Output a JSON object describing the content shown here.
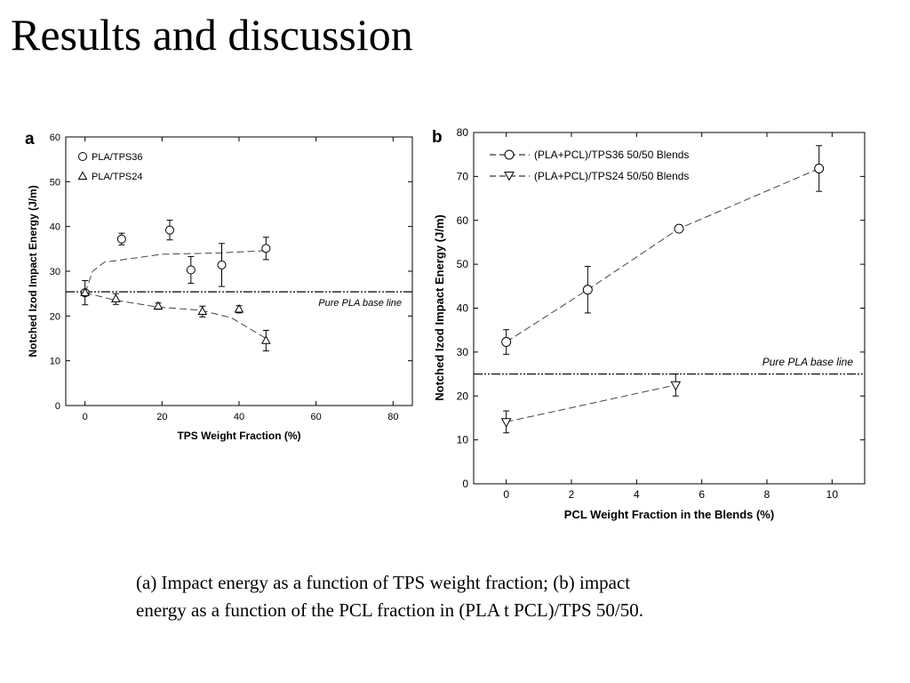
{
  "slide": {
    "title": "Results and discussion",
    "caption_line1": "(a) Impact energy as a function of TPS weight fraction; (b) impact",
    "caption_line2": "energy as a function of the PCL fraction in (PLA t PCL)/TPS 50/50."
  },
  "chart_data": [
    {
      "panel_label": "a",
      "type": "scatter",
      "xlabel": "TPS Weight Fraction (%)",
      "ylabel": "Notched Izod Impact Energy (J/m)",
      "xlim": [
        -5,
        85
      ],
      "ylim": [
        0,
        60
      ],
      "xticks": [
        0,
        20,
        40,
        60,
        80
      ],
      "yticks": [
        0,
        10,
        20,
        30,
        40,
        50,
        60
      ],
      "legend_position": "top-left",
      "series": [
        {
          "name": "PLA/TPS36",
          "marker": "circle",
          "points": [
            {
              "x": 0,
              "y": 25.2,
              "err": 2.7
            },
            {
              "x": 9.5,
              "y": 37.2,
              "err": 1.3
            },
            {
              "x": 22,
              "y": 39.2,
              "err": 2.2
            },
            {
              "x": 27.5,
              "y": 30.3,
              "err": 3.0
            },
            {
              "x": 35.5,
              "y": 31.4,
              "err": 4.8
            },
            {
              "x": 47,
              "y": 35.1,
              "err": 2.5
            }
          ],
          "trend": [
            [
              0,
              25.2
            ],
            [
              2,
              30
            ],
            [
              5,
              32
            ],
            [
              10,
              32.6
            ],
            [
              20,
              33.8
            ],
            [
              35,
              34.1
            ],
            [
              47,
              34.6
            ]
          ]
        },
        {
          "name": "PLA/TPS24",
          "marker": "triangle-up",
          "points": [
            {
              "x": 0,
              "y": 25.2,
              "err": 0
            },
            {
              "x": 8,
              "y": 23.8,
              "err": 1.2
            },
            {
              "x": 19,
              "y": 22.2,
              "err": 0.7
            },
            {
              "x": 30.5,
              "y": 21.0,
              "err": 1.2
            },
            {
              "x": 40,
              "y": 21.5,
              "err": 0.8
            },
            {
              "x": 47,
              "y": 14.5,
              "err": 2.3
            }
          ],
          "trend": [
            [
              0,
              25.2
            ],
            [
              8,
              23.5
            ],
            [
              19,
              22
            ],
            [
              30,
              21.3
            ],
            [
              38,
              19.6
            ],
            [
              47,
              15
            ]
          ]
        }
      ],
      "baseline": {
        "y": 25.4,
        "label": "Pure PLA base line"
      }
    },
    {
      "panel_label": "b",
      "type": "scatter",
      "xlabel": "PCL Weight Fraction in the Blends (%)",
      "ylabel": "Notched Izod Impact Energy (J/m)",
      "xlim": [
        -1,
        11
      ],
      "ylim": [
        0,
        80
      ],
      "xticks": [
        0,
        2,
        4,
        6,
        8,
        10
      ],
      "yticks": [
        0,
        10,
        20,
        30,
        40,
        50,
        60,
        70,
        80
      ],
      "legend_position": "top-left",
      "series": [
        {
          "name": "(PLA+PCL)/TPS36 50/50 Blends",
          "marker": "circle",
          "points": [
            {
              "x": 0,
              "y": 32.3,
              "err": 2.8
            },
            {
              "x": 2.5,
              "y": 44.2,
              "err": 5.3
            },
            {
              "x": 5.3,
              "y": 58.1,
              "err": 0.5
            },
            {
              "x": 9.6,
              "y": 71.8,
              "err": 5.2
            }
          ]
        },
        {
          "name": "(PLA+PCL)/TPS24 50/50 Blends",
          "marker": "triangle-down",
          "points": [
            {
              "x": 0,
              "y": 14.1,
              "err": 2.5
            },
            {
              "x": 5.2,
              "y": 22.5,
              "err": 2.5
            }
          ]
        }
      ],
      "baseline": {
        "y": 25.0,
        "label": "Pure PLA base line"
      }
    }
  ]
}
